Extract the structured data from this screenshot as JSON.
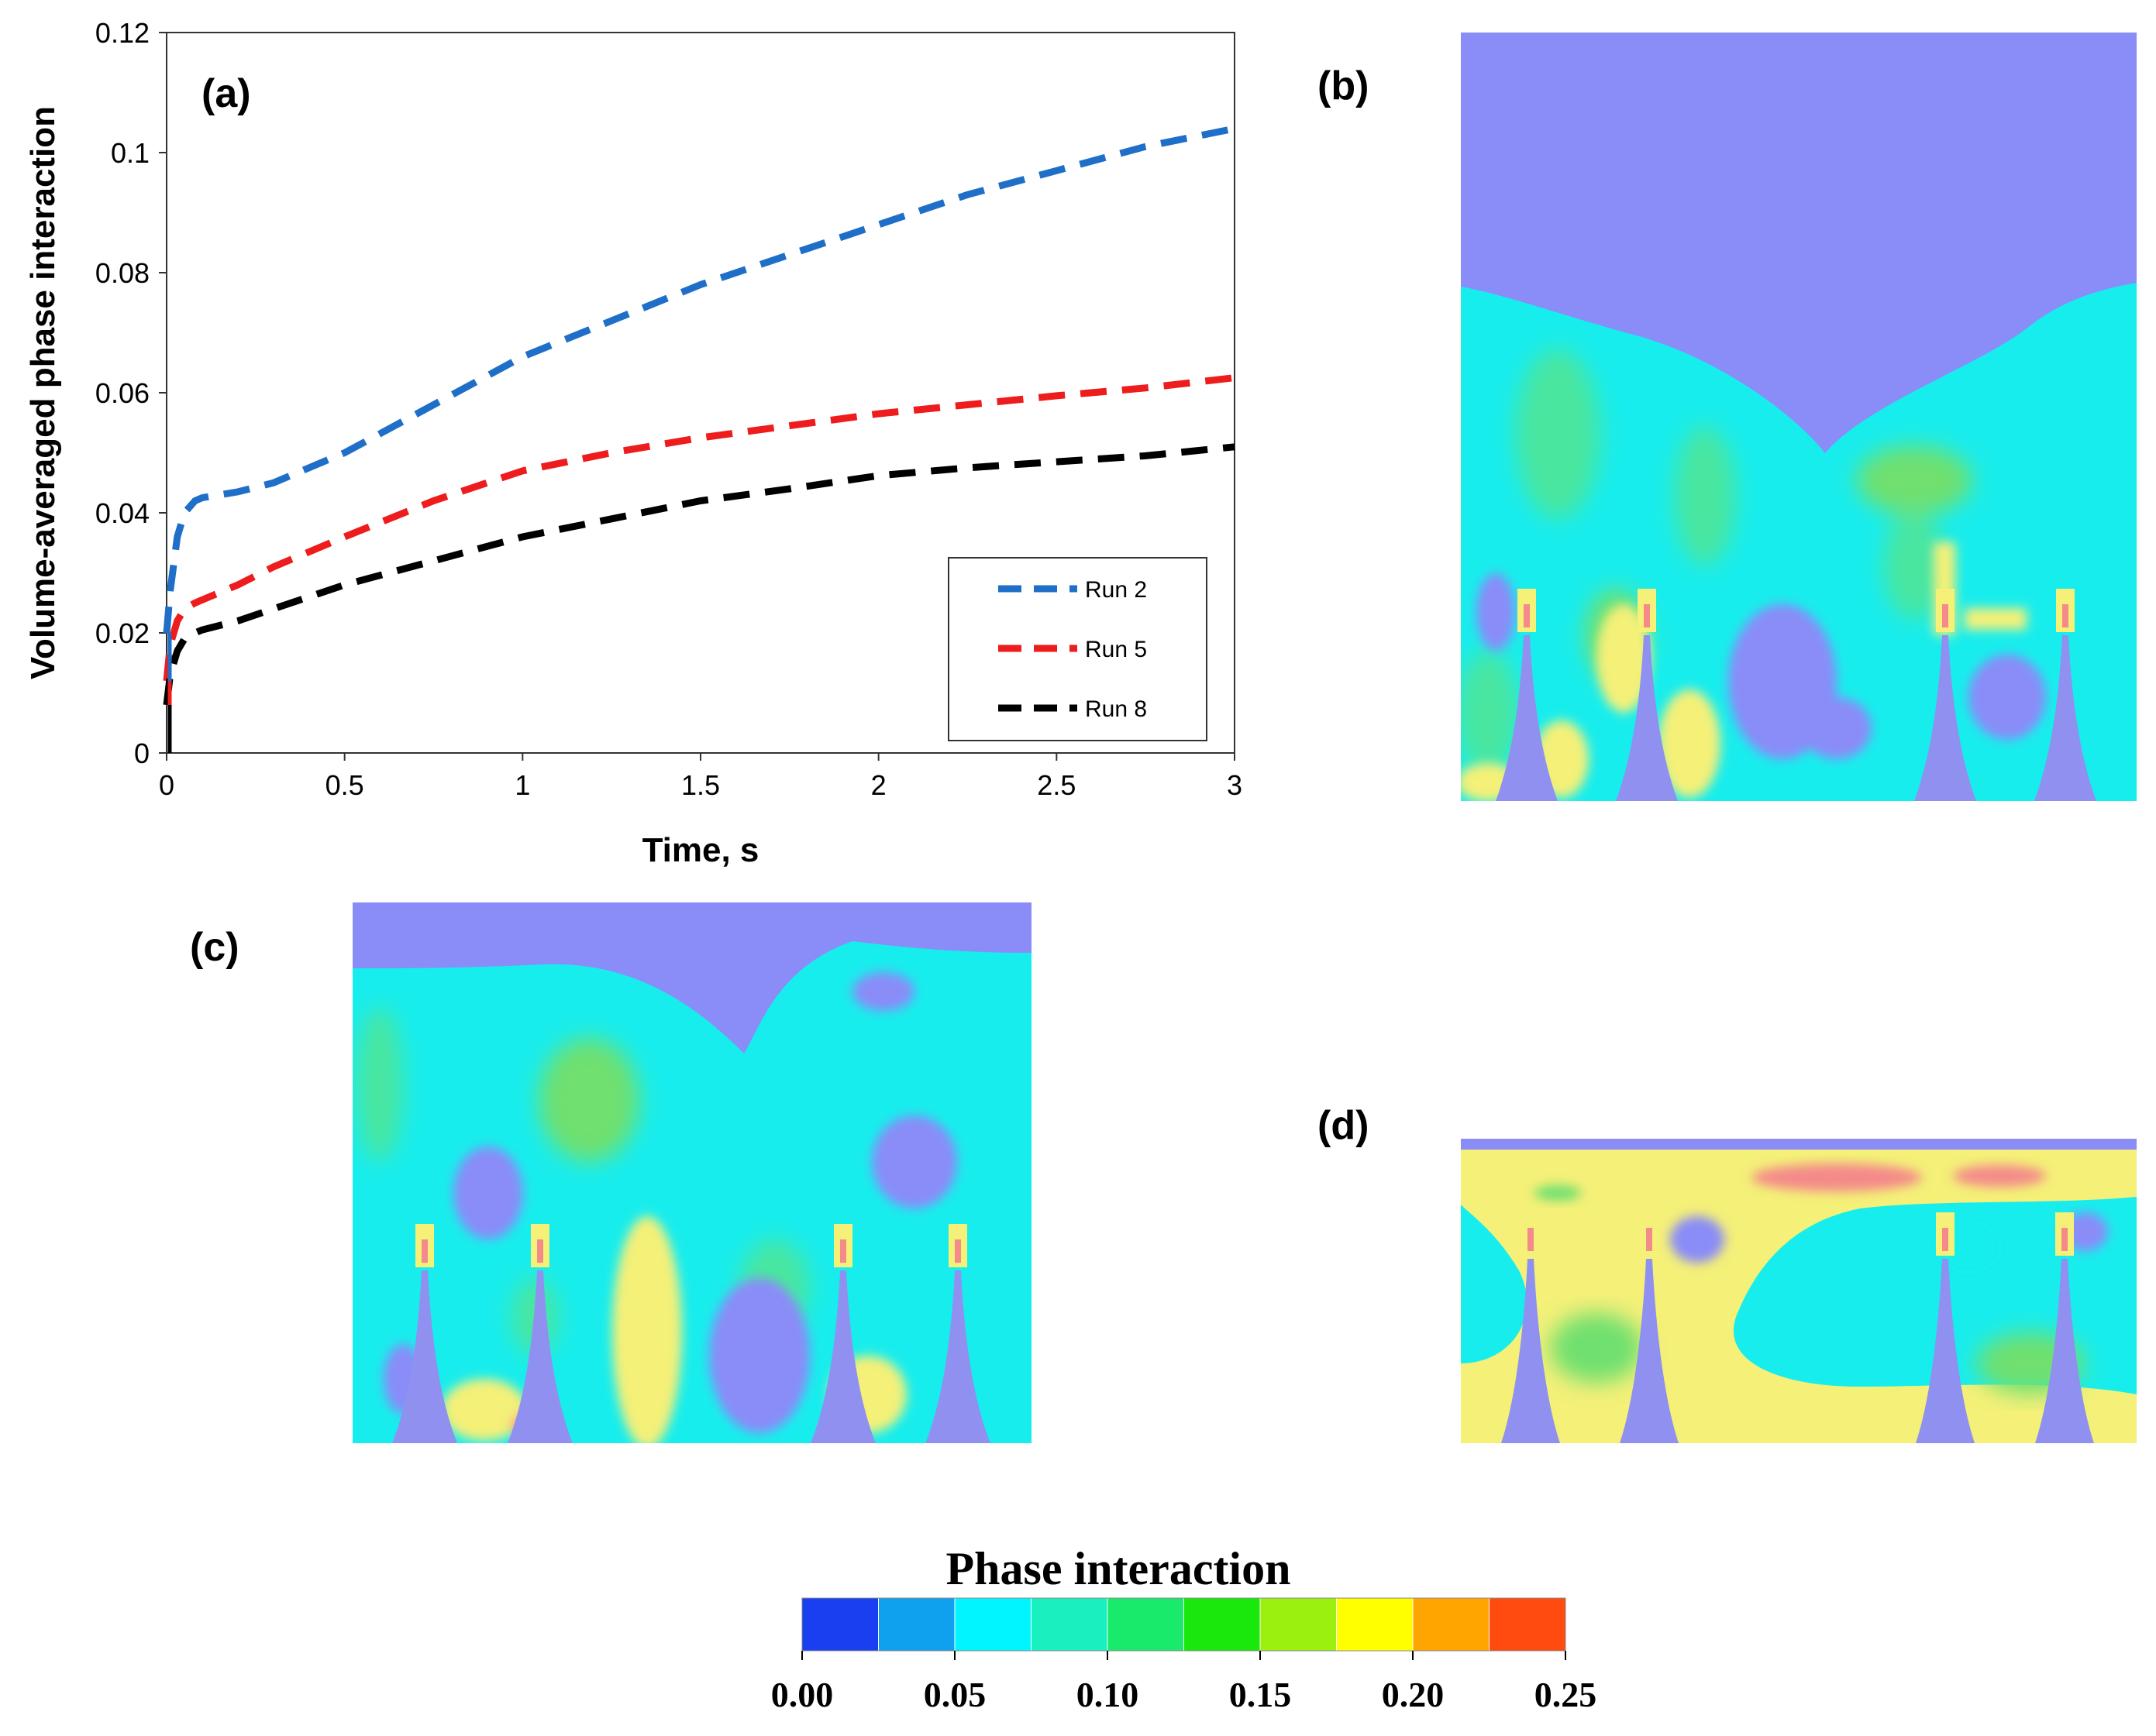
{
  "chart_data": [
    {
      "type": "line",
      "panel_label": "(a)",
      "title": "",
      "xlabel": "Time, s",
      "ylabel": "Volume-averaged phase interaction",
      "xlim": [
        0,
        3
      ],
      "ylim": [
        0,
        0.12
      ],
      "xticks": [
        "0",
        "0.5",
        "1",
        "1.5",
        "2",
        "2.5",
        "3"
      ],
      "yticks": [
        "0",
        "0.02",
        "0.04",
        "0.06",
        "0.08",
        "0.1",
        "0.12"
      ],
      "legend_position": "bottom-right",
      "series": [
        {
          "name": "Run 2",
          "color": "#1f6fc8",
          "x": [
            0,
            0.01,
            0.03,
            0.05,
            0.08,
            0.1,
            0.2,
            0.3,
            0.5,
            0.75,
            1.0,
            1.25,
            1.5,
            1.75,
            2.0,
            2.25,
            2.5,
            2.75,
            3.0
          ],
          "y": [
            0.02,
            0.027,
            0.036,
            0.04,
            0.042,
            0.0425,
            0.0435,
            0.045,
            0.05,
            0.058,
            0.066,
            0.072,
            0.078,
            0.083,
            0.088,
            0.093,
            0.097,
            0.101,
            0.104
          ]
        },
        {
          "name": "Run 5",
          "color": "#ee1c1c",
          "x": [
            0,
            0.01,
            0.03,
            0.05,
            0.08,
            0.1,
            0.2,
            0.3,
            0.5,
            0.75,
            1.0,
            1.25,
            1.5,
            1.75,
            2.0,
            2.25,
            2.5,
            2.75,
            3.0
          ],
          "y": [
            0.012,
            0.018,
            0.022,
            0.024,
            0.025,
            0.0255,
            0.028,
            0.031,
            0.036,
            0.042,
            0.047,
            0.05,
            0.0525,
            0.0545,
            0.0565,
            0.058,
            0.0595,
            0.0608,
            0.0625
          ]
        },
        {
          "name": "Run 8",
          "color": "#000000",
          "x": [
            0,
            0.01,
            0.03,
            0.05,
            0.08,
            0.1,
            0.2,
            0.3,
            0.5,
            0.75,
            1.0,
            1.25,
            1.5,
            1.75,
            2.0,
            2.25,
            2.5,
            2.75,
            3.0
          ],
          "y": [
            0.008,
            0.013,
            0.017,
            0.019,
            0.02,
            0.0205,
            0.022,
            0.024,
            0.028,
            0.032,
            0.036,
            0.039,
            0.042,
            0.044,
            0.0462,
            0.0475,
            0.0485,
            0.0495,
            0.051
          ]
        }
      ]
    },
    {
      "type": "heatmap",
      "panel_label": "(b)",
      "description_field": "contour",
      "nozzles": 4
    },
    {
      "type": "heatmap",
      "panel_label": "(c)",
      "description_field": "contour",
      "nozzles": 4
    },
    {
      "type": "heatmap",
      "panel_label": "(d)",
      "description_field": "contour",
      "nozzles": 4
    }
  ],
  "colorbar": {
    "title": "Phase interaction",
    "tick_labels": [
      "0.00",
      "0.05",
      "0.10",
      "0.15",
      "0.20",
      "0.25"
    ],
    "range": [
      0,
      0.25
    ],
    "colors": [
      "#1a3ff0",
      "#0fa0ee",
      "#00f5ff",
      "#19f0c0",
      "#19ea6c",
      "#18e80c",
      "#9cf010",
      "#ffff00",
      "#ffa500",
      "#ff4a10"
    ]
  },
  "contour_colors": {
    "gas": "#8a8cf8",
    "low": "#18eded",
    "mid": "#48e6a0",
    "green": "#70e070",
    "high": "#f4f078",
    "peak": "#f48a8a",
    "nozzle": "#9090f0"
  }
}
